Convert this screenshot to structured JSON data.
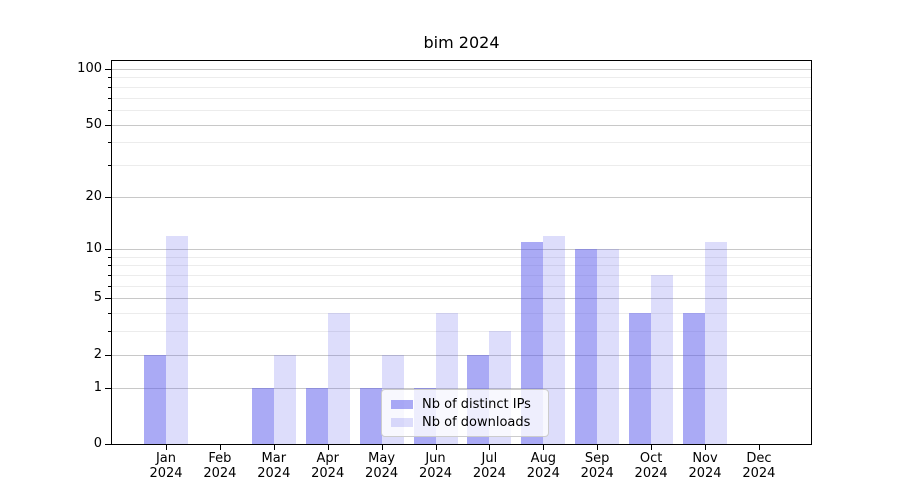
{
  "chart_data": {
    "type": "bar",
    "title": "bim 2024",
    "categories": [
      "Jan 2024",
      "Feb 2024",
      "Mar 2024",
      "Apr 2024",
      "May 2024",
      "Jun 2024",
      "Jul 2024",
      "Aug 2024",
      "Sep 2024",
      "Oct 2024",
      "Nov 2024",
      "Dec 2024"
    ],
    "series": [
      {
        "name": "Nb of distinct IPs",
        "color": "rgba(85,85,235,0.5)",
        "values": [
          2,
          0,
          1,
          1,
          1,
          1,
          2,
          11,
          10,
          4,
          4,
          0
        ]
      },
      {
        "name": "Nb of downloads",
        "color": "rgba(85,85,235,0.2)",
        "values": [
          12,
          0,
          2,
          4,
          2,
          4,
          3,
          12,
          10,
          7,
          11,
          0
        ]
      }
    ],
    "yscale": "log1p",
    "ylim": [
      0,
      113
    ],
    "ytick_major": [
      0,
      1,
      2,
      5,
      10,
      20,
      50,
      100
    ],
    "ytick_minor": [
      3,
      4,
      6,
      7,
      8,
      9,
      30,
      40,
      60,
      70,
      80,
      90
    ],
    "grid": "horizontal",
    "legend_position": "inside-bottom-center"
  },
  "colors": {
    "grid_major": "#c8c8c8",
    "grid_minor": "#ececec",
    "axis": "#000000",
    "legend_bg": "rgba(255,255,255,0.8)",
    "legend_border": "#cccccc"
  }
}
